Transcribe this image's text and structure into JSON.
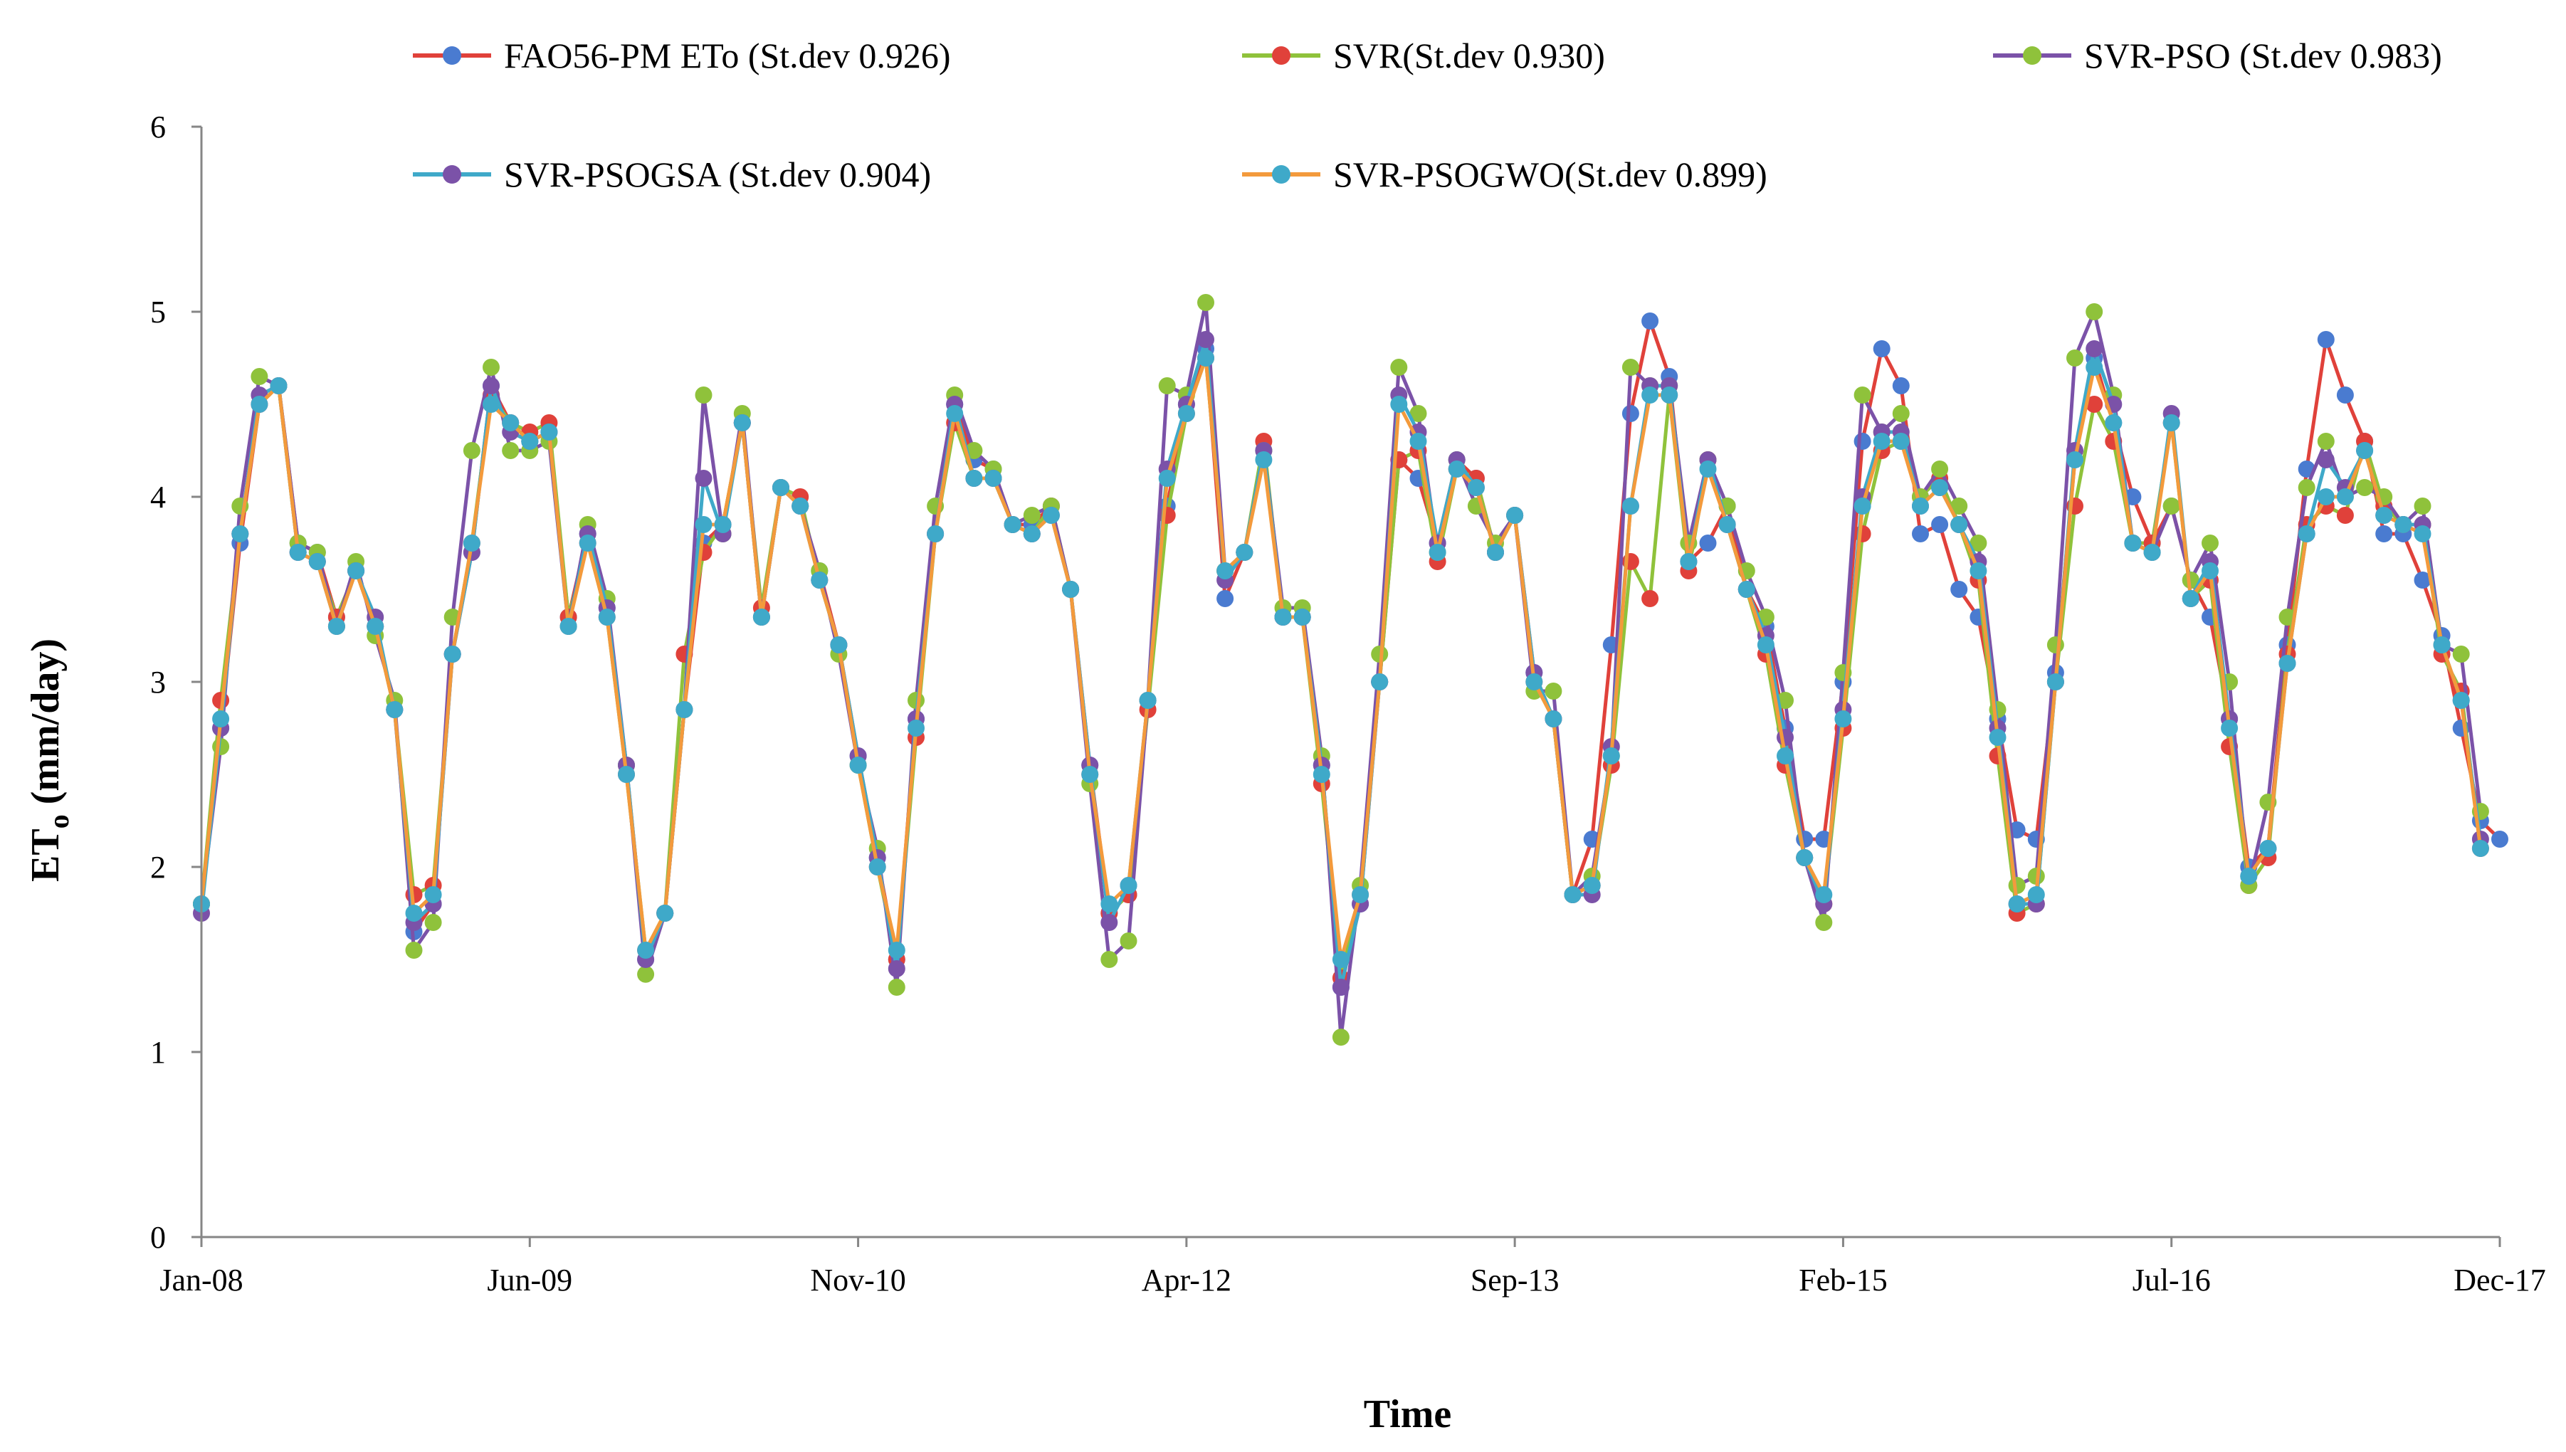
{
  "chart_data": {
    "type": "line",
    "title": "",
    "xlabel": "Time",
    "ylabel": "ETo (mm/day)",
    "ylabel_main": "ET",
    "ylabel_sub": "o",
    "ylabel_rest": " (mm/day)",
    "ylim": [
      0,
      6
    ],
    "yticks": [
      "0",
      "1",
      "2",
      "3",
      "4",
      "5",
      "6"
    ],
    "xticks": [
      "Jan-08",
      "Jun-09",
      "Nov-10",
      "Apr-12",
      "Sep-13",
      "Feb-15",
      "Jul-16",
      "Dec-17"
    ],
    "legend_position": "top",
    "n_points": 120,
    "series": [
      {
        "name": "FAO56-PM ETo  (St.dev 0.926)",
        "line_color": "#e0413a",
        "marker_color": "#4a7bd0",
        "values": [
          1.8,
          2.75,
          3.75,
          4.5,
          4.6,
          3.75,
          3.7,
          3.35,
          3.6,
          3.3,
          2.85,
          1.65,
          1.8,
          3.15,
          3.7,
          4.6,
          4.4,
          4.3,
          4.35,
          3.35,
          3.8,
          3.4,
          2.55,
          1.5,
          1.75,
          2.85,
          3.75,
          3.85,
          4.4,
          3.35,
          4.05,
          3.95,
          3.6,
          3.2,
          2.6,
          2.05,
          1.5,
          2.8,
          3.8,
          4.5,
          4.2,
          4.15,
          3.85,
          3.85,
          3.95,
          3.5,
          2.55,
          1.75,
          1.85,
          2.9,
          3.95,
          4.5,
          4.8,
          3.45,
          3.7,
          4.25,
          3.35,
          3.35,
          2.55,
          1.35,
          1.8,
          3.0,
          4.2,
          4.1,
          3.75,
          4.2,
          4.1,
          3.7,
          3.9,
          3.05,
          2.8,
          1.85,
          2.15,
          3.2,
          4.45,
          4.95,
          4.65,
          3.65,
          3.75,
          3.95,
          3.5,
          3.3,
          2.75,
          2.15,
          2.15,
          3.0,
          4.3,
          4.8,
          4.6,
          3.8,
          3.85,
          3.5,
          3.35,
          2.8,
          2.2,
          2.15,
          3.05,
          4.2,
          4.75,
          4.4,
          4.0,
          3.75,
          3.95,
          3.55,
          3.35,
          2.8,
          2.0,
          2.1,
          3.2,
          4.15,
          4.85,
          4.55,
          4.3,
          3.8,
          3.8,
          3.55,
          3.25,
          2.75,
          2.25,
          2.15
        ]
      },
      {
        "name": "SVR(St.dev 0.930)",
        "line_color": "#8fc23b",
        "marker_color": "#e0413a",
        "values": [
          1.8,
          2.9,
          3.8,
          4.5,
          4.6,
          3.7,
          3.65,
          3.35,
          3.6,
          3.3,
          2.85,
          1.85,
          1.9,
          3.15,
          3.75,
          4.55,
          4.4,
          4.35,
          4.4,
          3.35,
          3.75,
          3.35,
          2.5,
          1.55,
          1.75,
          3.15,
          3.7,
          3.85,
          4.4,
          3.4,
          4.05,
          4.0,
          3.55,
          3.2,
          2.55,
          2.0,
          1.5,
          2.7,
          3.8,
          4.4,
          4.1,
          4.1,
          3.85,
          3.8,
          3.95,
          3.5,
          2.5,
          1.75,
          1.85,
          2.85,
          3.9,
          4.45,
          4.75,
          3.6,
          3.7,
          4.3,
          3.35,
          3.35,
          2.45,
          1.4,
          1.85,
          3.0,
          4.2,
          4.25,
          3.65,
          4.15,
          4.1,
          3.7,
          3.9,
          3.0,
          2.8,
          1.85,
          1.9,
          2.55,
          3.65,
          3.45,
          4.55,
          3.6,
          4.2,
          3.85,
          3.5,
          3.15,
          2.55,
          2.05,
          1.8,
          2.75,
          3.8,
          4.25,
          4.3,
          4.0,
          4.1,
          3.85,
          3.55,
          2.6,
          1.75,
          1.8,
          3.0,
          3.95,
          4.5,
          4.3,
          3.75,
          3.75,
          4.4,
          3.45,
          3.55,
          2.65,
          1.9,
          2.05,
          3.15,
          3.85,
          3.95,
          3.9,
          4.3,
          3.95,
          3.85,
          3.85,
          3.15,
          2.95,
          2.1
        ]
      },
      {
        "name": "SVR-PSO (St.dev 0.983)",
        "line_color": "#7b52a8",
        "marker_color": "#8fc23b",
        "values": [
          1.8,
          2.65,
          3.95,
          4.65,
          4.6,
          3.75,
          3.7,
          3.3,
          3.65,
          3.25,
          2.9,
          1.55,
          1.7,
          3.35,
          4.25,
          4.7,
          4.25,
          4.25,
          4.3,
          3.3,
          3.85,
          3.45,
          2.55,
          1.42,
          1.75,
          2.85,
          4.55,
          3.8,
          4.45,
          3.35,
          4.05,
          3.95,
          3.6,
          3.15,
          2.55,
          2.1,
          1.35,
          2.9,
          3.95,
          4.55,
          4.25,
          4.15,
          3.85,
          3.9,
          3.95,
          3.5,
          2.45,
          1.5,
          1.6,
          2.9,
          4.6,
          4.55,
          5.05,
          3.6,
          3.7,
          4.25,
          3.4,
          3.4,
          2.6,
          1.08,
          1.9,
          3.15,
          4.7,
          4.45,
          3.7,
          4.2,
          3.95,
          3.75,
          3.9,
          2.95,
          2.95,
          1.85,
          1.95,
          2.6,
          4.7,
          4.6,
          4.6,
          3.75,
          4.2,
          3.95,
          3.6,
          3.35,
          2.9,
          2.05,
          1.7,
          3.05,
          4.55,
          4.35,
          4.45,
          4.0,
          4.15,
          3.95,
          3.75,
          2.85,
          1.9,
          1.95,
          3.2,
          4.75,
          5.0,
          4.55,
          3.75,
          3.7,
          3.95,
          3.55,
          3.75,
          3.0,
          1.9,
          2.35,
          3.35,
          4.05,
          4.3,
          4.0,
          4.05,
          4.0,
          3.85,
          3.95,
          3.2,
          3.15,
          2.3
        ]
      },
      {
        "name": "SVR-PSOGSA (St.dev 0.904)",
        "line_color": "#3fa9c9",
        "marker_color": "#7b52a8",
        "values": [
          1.75,
          2.75,
          3.8,
          4.55,
          4.6,
          3.7,
          3.65,
          3.3,
          3.6,
          3.35,
          2.85,
          1.7,
          1.8,
          3.15,
          3.7,
          4.6,
          4.35,
          4.3,
          4.35,
          3.3,
          3.8,
          3.4,
          2.55,
          1.5,
          1.75,
          2.85,
          4.1,
          3.8,
          4.4,
          3.35,
          4.05,
          3.95,
          3.55,
          3.2,
          2.6,
          2.05,
          1.45,
          2.8,
          3.8,
          4.5,
          4.1,
          4.1,
          3.85,
          3.8,
          3.9,
          3.5,
          2.55,
          1.7,
          1.9,
          2.9,
          4.15,
          4.5,
          4.85,
          3.55,
          3.7,
          4.25,
          3.35,
          3.35,
          2.55,
          1.35,
          1.8,
          3.0,
          4.55,
          4.35,
          3.75,
          4.2,
          4.05,
          3.7,
          3.9,
          3.05,
          2.8,
          1.85,
          1.85,
          2.65,
          3.95,
          4.6,
          4.6,
          3.65,
          4.2,
          3.85,
          3.5,
          3.25,
          2.7,
          2.05,
          1.8,
          2.85,
          4.0,
          4.35,
          4.35,
          3.95,
          4.05,
          3.85,
          3.65,
          2.75,
          1.8,
          1.8,
          3.0,
          4.25,
          4.8,
          4.5,
          3.75,
          3.7,
          4.45,
          3.45,
          3.65,
          2.8,
          1.95,
          2.1,
          3.1,
          3.8,
          4.2,
          4.05,
          4.25,
          3.9,
          3.85,
          3.85,
          3.2,
          2.9,
          2.15
        ]
      },
      {
        "name": "SVR-PSOGWO(St.dev 0.899)",
        "line_color": "#f39a3c",
        "marker_color": "#3fa9c9",
        "values": [
          1.8,
          2.8,
          3.8,
          4.5,
          4.6,
          3.7,
          3.65,
          3.3,
          3.6,
          3.3,
          2.85,
          1.75,
          1.85,
          3.15,
          3.75,
          4.5,
          4.4,
          4.3,
          4.35,
          3.3,
          3.75,
          3.35,
          2.5,
          1.55,
          1.75,
          2.85,
          3.85,
          3.85,
          4.4,
          3.35,
          4.05,
          3.95,
          3.55,
          3.2,
          2.55,
          2.0,
          1.55,
          2.75,
          3.8,
          4.45,
          4.1,
          4.1,
          3.85,
          3.8,
          3.9,
          3.5,
          2.5,
          1.8,
          1.9,
          2.9,
          4.1,
          4.45,
          4.75,
          3.6,
          3.7,
          4.2,
          3.35,
          3.35,
          2.5,
          1.5,
          1.85,
          3.0,
          4.5,
          4.3,
          3.7,
          4.15,
          4.05,
          3.7,
          3.9,
          3.0,
          2.8,
          1.85,
          1.9,
          2.6,
          3.95,
          4.55,
          4.55,
          3.65,
          4.15,
          3.85,
          3.5,
          3.2,
          2.6,
          2.05,
          1.85,
          2.8,
          3.95,
          4.3,
          4.3,
          3.95,
          4.05,
          3.85,
          3.6,
          2.7,
          1.8,
          1.85,
          3.0,
          4.2,
          4.7,
          4.4,
          3.75,
          3.7,
          4.4,
          3.45,
          3.6,
          2.75,
          1.95,
          2.1,
          3.1,
          3.8,
          4.0,
          4.0,
          4.25,
          3.9,
          3.85,
          3.8,
          3.2,
          2.9,
          2.1
        ]
      }
    ]
  }
}
